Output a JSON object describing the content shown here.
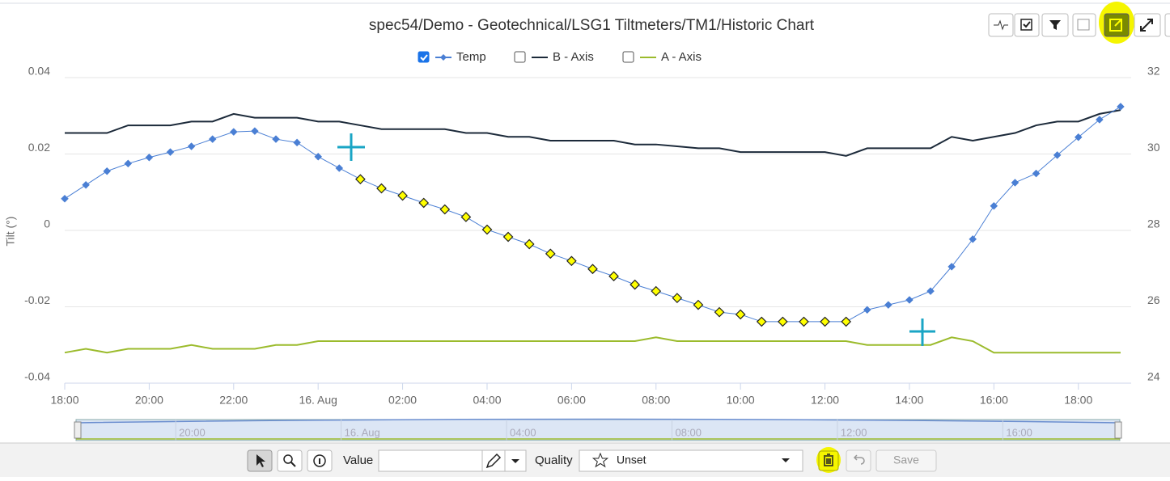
{
  "chart_data": {
    "type": "line",
    "title": "spec54/Demo - Geotechnical/LSG1 Tiltmeters/TM1/Historic Chart",
    "y_label": "Tilt (°)",
    "x": [
      0,
      0.5,
      1,
      1.5,
      2,
      2.5,
      3,
      3.5,
      4,
      4.5,
      5,
      5.5,
      6,
      6.5,
      7,
      7.5,
      8,
      8.5,
      9,
      9.5,
      10,
      10.5,
      11,
      11.5,
      12,
      12.5,
      13,
      13.5,
      14,
      14.5,
      15,
      15.5,
      16,
      16.5,
      17,
      17.5,
      18,
      18.5,
      19,
      19.5,
      20,
      20.5,
      21,
      21.5,
      22,
      22.5,
      23,
      23.5,
      24,
      24.5,
      25
    ],
    "series": [
      {
        "name": "Temp",
        "color": "#4a7fd4",
        "axis": "y2",
        "marker": "diamond",
        "checked": true,
        "values": [
          28.83,
          29.19,
          29.55,
          29.75,
          29.91,
          30.05,
          30.2,
          30.39,
          30.58,
          30.6,
          30.39,
          30.3,
          29.93,
          29.63,
          29.34,
          29.1,
          28.91,
          28.72,
          28.55,
          28.35,
          28.02,
          27.83,
          27.64,
          27.39,
          27.2,
          26.99,
          26.8,
          26.58,
          26.41,
          26.23,
          26.05,
          25.86,
          25.8,
          25.61,
          25.61,
          25.61,
          25.61,
          25.61,
          25.92,
          26.05,
          26.18,
          26.41,
          27.05,
          27.77,
          28.64,
          29.25,
          29.49,
          29.97,
          30.44,
          30.9,
          31.24
        ]
      },
      {
        "name": "B - Axis",
        "color": "#1c2a3a",
        "checked": false,
        "values": [
          0.0255,
          0.0255,
          0.0255,
          0.0275,
          0.0275,
          0.0275,
          0.0285,
          0.0285,
          0.0305,
          0.0295,
          0.0295,
          0.0295,
          0.0285,
          0.0285,
          0.0275,
          0.0265,
          0.0265,
          0.0265,
          0.0265,
          0.0255,
          0.0255,
          0.0245,
          0.0245,
          0.0235,
          0.0235,
          0.0235,
          0.0235,
          0.0225,
          0.0225,
          0.022,
          0.0215,
          0.0215,
          0.0205,
          0.0205,
          0.0205,
          0.0205,
          0.0205,
          0.0195,
          0.0215,
          0.0215,
          0.0215,
          0.0215,
          0.0245,
          0.0235,
          0.0245,
          0.0255,
          0.0275,
          0.0285,
          0.0285,
          0.0305,
          0.0315
        ]
      },
      {
        "name": "A - Axis",
        "color": "#9bbb2c",
        "checked": false,
        "values": [
          -0.032,
          -0.031,
          -0.032,
          -0.031,
          -0.031,
          -0.031,
          -0.03,
          -0.031,
          -0.031,
          -0.031,
          -0.03,
          -0.03,
          -0.029,
          -0.029,
          -0.029,
          -0.029,
          -0.029,
          -0.029,
          -0.029,
          -0.029,
          -0.029,
          -0.029,
          -0.029,
          -0.029,
          -0.029,
          -0.029,
          -0.029,
          -0.029,
          -0.028,
          -0.029,
          -0.029,
          -0.029,
          -0.029,
          -0.029,
          -0.029,
          -0.029,
          -0.029,
          -0.029,
          -0.03,
          -0.03,
          -0.03,
          -0.03,
          -0.028,
          -0.029,
          -0.032,
          -0.032,
          -0.032,
          -0.032,
          -0.032,
          -0.032,
          -0.032
        ]
      }
    ],
    "selection": {
      "xrange": [
        7,
        18.5
      ],
      "color": "#ffff00"
    },
    "xlim": [
      0,
      25.25
    ],
    "xticks": [
      {
        "value": 0,
        "label": "18:00"
      },
      {
        "value": 2,
        "label": "20:00"
      },
      {
        "value": 4,
        "label": "22:00"
      },
      {
        "value": 6,
        "label": "16. Aug"
      },
      {
        "value": 8,
        "label": "02:00"
      },
      {
        "value": 10,
        "label": "04:00"
      },
      {
        "value": 12,
        "label": "06:00"
      },
      {
        "value": 14,
        "label": "08:00"
      },
      {
        "value": 16,
        "label": "10:00"
      },
      {
        "value": 18,
        "label": "12:00"
      },
      {
        "value": 20,
        "label": "14:00"
      },
      {
        "value": 22,
        "label": "16:00"
      },
      {
        "value": 24,
        "label": "18:00"
      }
    ],
    "ylim": [
      -0.04,
      0.04
    ],
    "yticks": [
      -0.04,
      -0.02,
      0,
      0.02,
      0.04
    ],
    "y2lim": [
      24,
      32
    ],
    "y2ticks": [
      24,
      26,
      28,
      30,
      32
    ],
    "grid": true,
    "navigator": {
      "xlim": [
        -0.41,
        24.83
      ],
      "xticks": [
        {
          "value": 2,
          "label": "20:00"
        },
        {
          "value": 6,
          "label": "16. Aug"
        },
        {
          "value": 10,
          "label": "04:00"
        },
        {
          "value": 14,
          "label": "08:00"
        },
        {
          "value": 18,
          "label": "12:00"
        },
        {
          "value": 22,
          "label": "16:00"
        }
      ]
    }
  },
  "toolbar": {
    "value_label": "Value",
    "quality_label": "Quality",
    "quality": "Unset",
    "save": "Save"
  }
}
